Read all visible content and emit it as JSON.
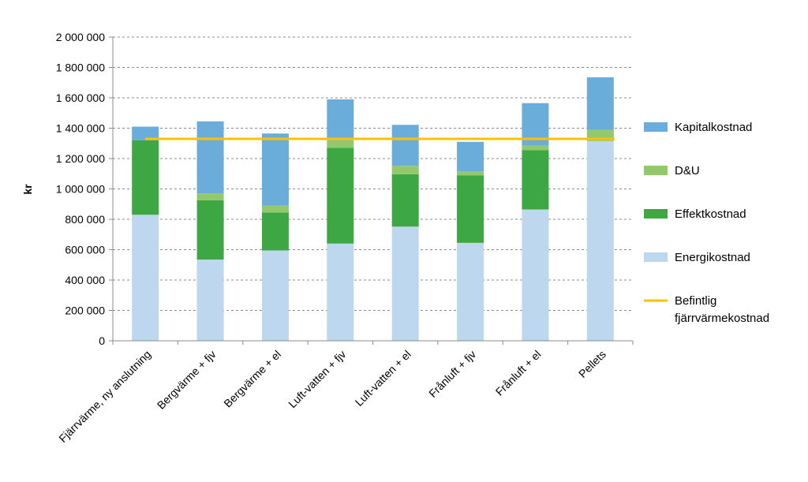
{
  "chart_data": {
    "type": "bar",
    "stacked": true,
    "ylabel": "kr",
    "ylim": [
      0,
      2000000
    ],
    "yticks": [
      0,
      200000,
      400000,
      600000,
      800000,
      1000000,
      1200000,
      1400000,
      1600000,
      1800000,
      2000000
    ],
    "ytick_labels": [
      "0",
      "200 000",
      "400 000",
      "600 000",
      "800 000",
      "1 000 000",
      "1 200 000",
      "1 400 000",
      "1 600 000",
      "1 800 000",
      "2 000 000"
    ],
    "grid": true,
    "legend_position": "right",
    "categories": [
      "Fjärrvärme, ny anslutning",
      "Bergvärme + fjv",
      "Bergvärme + el",
      "Luft-vatten + fjv",
      "Luft-vatten + el",
      "Frånluft + fjv",
      "Frånluft + el",
      "Pellets"
    ],
    "series": [
      {
        "name": "Energikostnad",
        "color": "#BDD7EE",
        "values": [
          830000,
          535000,
          595000,
          640000,
          752000,
          645000,
          865000,
          1315000
        ]
      },
      {
        "name": "Effektkostnad",
        "color": "#3DA843",
        "values": [
          490000,
          390000,
          250000,
          630000,
          345000,
          445000,
          390000,
          0
        ]
      },
      {
        "name": "D&U",
        "color": "#92C96F",
        "values": [
          0,
          45000,
          45000,
          50000,
          55000,
          25000,
          30000,
          75000
        ]
      },
      {
        "name": "Kapitalkostnad",
        "color": "#6AADDB",
        "values": [
          90000,
          475000,
          475000,
          270000,
          270000,
          195000,
          280000,
          345000
        ]
      }
    ],
    "reference_line": {
      "name": "Befintlig fjärrvärmekostnad",
      "color": "#FFC000",
      "value": 1330000
    },
    "legend_order": [
      "Kapitalkostnad",
      "D&U",
      "Effektkostnad",
      "Energikostnad",
      "Befintlig fjärrvärmekostnad"
    ]
  }
}
